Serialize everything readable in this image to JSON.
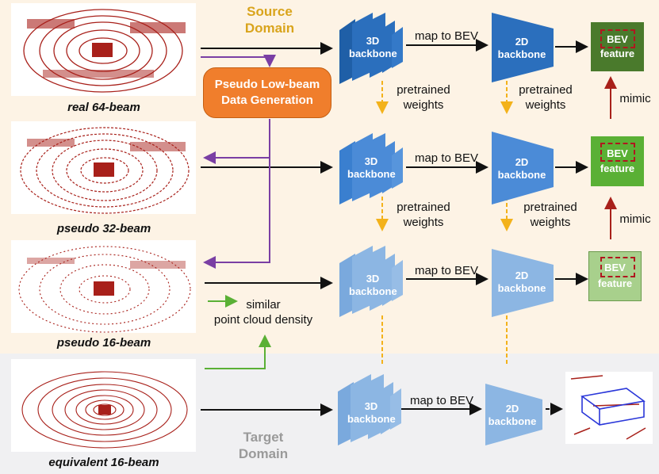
{
  "source_domain": "Source\nDomain",
  "target_domain": "Target\nDomain",
  "pseudo_gen": "Pseudo Low-beam\nData Generation",
  "captions": [
    "real 64-beam",
    "pseudo 32-beam",
    "pseudo 16-beam",
    "equivalent 16-beam"
  ],
  "backbone3d": "3D\nbackbone",
  "backbone2d": "2D\nbackbone",
  "map_to_bev": "map to BEV",
  "pretrained_weights": "pretrained\nweights",
  "bev_feature_title": "BEV",
  "bev_feature_sub": "feature",
  "mimic": "mimic",
  "similar_density": "similar\npoint cloud density",
  "colors": {
    "scan": "#a8201a",
    "orange": "#f07e2c",
    "purple": "#7a3fa4",
    "green": "#5ab035",
    "dashed": "#f3b21b",
    "domain_source": "#d9a41c",
    "domain_target": "#9a9a9a"
  }
}
